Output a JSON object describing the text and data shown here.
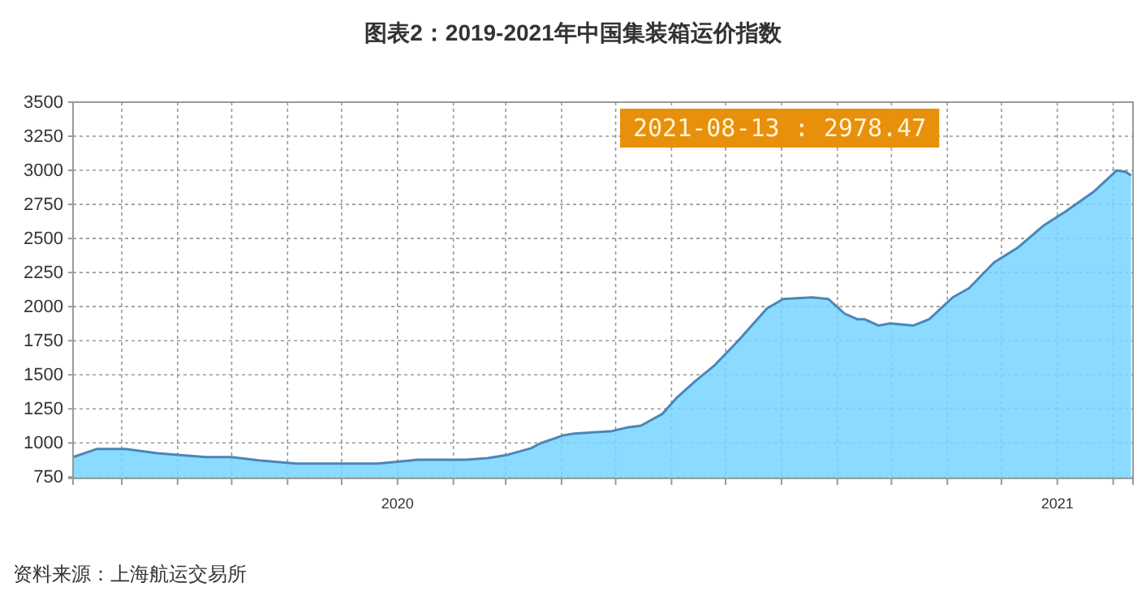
{
  "chart_data": {
    "type": "area",
    "title": "图表2：2019-2021年中国集装箱运价指数",
    "annotations": [
      "2021-08-13 : 2978.47",
      "资料来源：上海航运交易所"
    ],
    "x": [
      "2019-07-05",
      "2019-07-18",
      "2019-08-03",
      "2019-08-21",
      "2019-09-01",
      "2019-09-17",
      "2019-10-01",
      "2019-10-16",
      "2019-11-06",
      "2019-12-03",
      "2019-12-21",
      "2020-01-03",
      "2020-01-12",
      "2020-02-08",
      "2020-02-20",
      "2020-03-02",
      "2020-03-15",
      "2020-03-20",
      "2020-04-02",
      "2020-04-08",
      "2020-04-29",
      "2020-05-08",
      "2020-05-15",
      "2020-05-27",
      "2020-06-04",
      "2020-06-14",
      "2020-06-25",
      "2020-07-08",
      "2020-07-24",
      "2020-08-02",
      "2020-08-18",
      "2020-08-27",
      "2020-09-05",
      "2020-09-12",
      "2020-09-16",
      "2020-09-24",
      "2020-09-30",
      "2020-10-13",
      "2020-10-22",
      "2020-11-04",
      "2020-11-13",
      "2020-11-27",
      "2020-12-10",
      "2020-12-24",
      "2021-01-06",
      "2021-01-21",
      "2021-02-03",
      "2021-02-08",
      "2021-02-11"
    ],
    "series": [
      {
        "color": "#4a86b8",
        "values": [
          896,
          955,
          956,
          925,
          913,
          896,
          896,
          873,
          849,
          849,
          849,
          865,
          877,
          877,
          889,
          913,
          961,
          996,
          1056,
          1068,
          1087,
          1115,
          1127,
          1214,
          1333,
          1452,
          1571,
          1750,
          1988,
          2056,
          2068,
          2056,
          1949,
          1908,
          1908,
          1861,
          1877,
          1861,
          1908,
          2068,
          2135,
          2325,
          2432,
          2591,
          2702,
          2841,
          2999,
          2988,
          2961
        ]
      }
    ],
    "ylim": [
      740,
      3500
    ],
    "yticks": [
      750,
      1000,
      1250,
      1500,
      1750,
      2000,
      2250,
      2500,
      2750,
      3000,
      3250,
      3500
    ],
    "xlim": [
      "2019-07-05",
      "2021-02-12"
    ],
    "xticks": [
      {
        "value": "2019-08-01",
        "label": null
      },
      {
        "value": "2019-09-01",
        "label": null
      },
      {
        "value": "2019-10-01",
        "label": null
      },
      {
        "value": "2019-11-01",
        "label": null
      },
      {
        "value": "2019-12-01",
        "label": null
      },
      {
        "value": "2020-01-01",
        "label": "2020"
      },
      {
        "value": "2020-02-01",
        "label": null
      },
      {
        "value": "2020-03-01",
        "label": null
      },
      {
        "value": "2020-04-01",
        "label": null
      },
      {
        "value": "2020-05-01",
        "label": null
      },
      {
        "value": "2020-06-01",
        "label": null
      },
      {
        "value": "2020-07-01",
        "label": null
      },
      {
        "value": "2020-08-01",
        "label": null
      },
      {
        "value": "2020-09-01",
        "label": null
      },
      {
        "value": "2020-10-01",
        "label": null
      },
      {
        "value": "2020-11-01",
        "label": null
      },
      {
        "value": "2020-12-01",
        "label": null
      },
      {
        "value": "2021-01-01",
        "label": "2021"
      },
      {
        "value": "2021-02-01",
        "label": null
      }
    ],
    "grid": true
  }
}
